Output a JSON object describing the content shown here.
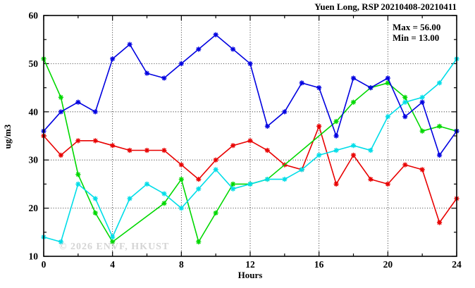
{
  "title": "Yuen Long, RSP 20210408-20210411",
  "annotation": {
    "max_label": "Max = 56.00",
    "min_label": "Min = 13.00"
  },
  "watermark": "© 2026 ENVF, HKUST",
  "chart_data": {
    "type": "line",
    "title": "Yuen Long, RSP 20210408-20210411",
    "xlabel": "Hours",
    "ylabel": "ug/m3",
    "xlim": [
      0,
      24
    ],
    "ylim": [
      10,
      60
    ],
    "x_major_ticks": [
      0,
      4,
      8,
      12,
      16,
      20,
      24
    ],
    "x_minor_ticks": [
      2,
      6,
      10,
      14,
      18,
      22
    ],
    "y_major_ticks": [
      10,
      20,
      30,
      40,
      50,
      60
    ],
    "y_minor_ticks": [
      15,
      25,
      35,
      45,
      55
    ],
    "x_gridlines": [
      4,
      8,
      12,
      16,
      20
    ],
    "y_gridlines": [
      20,
      30,
      40,
      50
    ],
    "grid": true,
    "legend": false,
    "max": 56.0,
    "min": 13.0,
    "x": [
      0,
      1,
      2,
      3,
      4,
      5,
      6,
      7,
      8,
      9,
      10,
      11,
      12,
      13,
      14,
      15,
      16,
      17,
      18,
      19,
      20,
      21,
      22,
      23,
      24
    ],
    "series": [
      {
        "name": "series-red",
        "color": "#e80000",
        "values": [
          35,
          31,
          34,
          34,
          33,
          32,
          32,
          32,
          29,
          26,
          30,
          33,
          34,
          32,
          29,
          28,
          37,
          25,
          31,
          26,
          25,
          29,
          28,
          17,
          22
        ]
      },
      {
        "name": "series-green",
        "color": "#00d800",
        "values": [
          51,
          43,
          27,
          19,
          13,
          null,
          null,
          21,
          26,
          13,
          19,
          25,
          25,
          26,
          null,
          null,
          null,
          38,
          42,
          45,
          46,
          43,
          36,
          37,
          36
        ]
      },
      {
        "name": "series-cyan",
        "color": "#00dde8",
        "values": [
          14,
          13,
          25,
          22,
          14,
          22,
          25,
          23,
          20,
          24,
          28,
          24,
          25,
          26,
          26,
          28,
          31,
          32,
          33,
          32,
          39,
          42,
          43,
          46,
          51
        ]
      },
      {
        "name": "series-blue",
        "color": "#0000e0",
        "values": [
          36,
          40,
          42,
          40,
          51,
          54,
          48,
          47,
          50,
          53,
          56,
          53,
          50,
          37,
          40,
          46,
          45,
          35,
          47,
          45,
          47,
          39,
          42,
          31,
          36
        ]
      }
    ]
  }
}
